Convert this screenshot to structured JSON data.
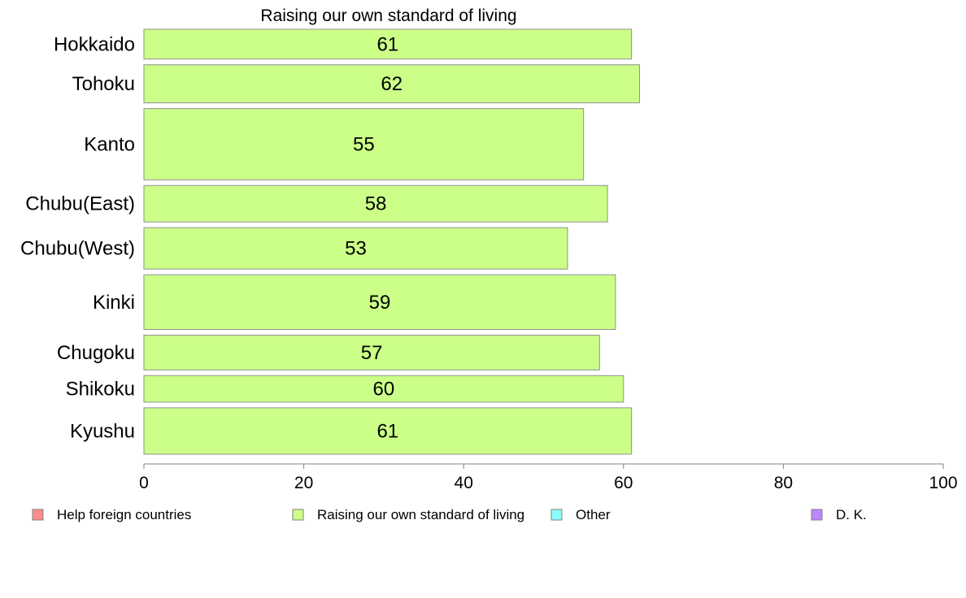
{
  "chart_data": {
    "type": "bar",
    "orientation": "horizontal",
    "title": "Raising our own standard of living",
    "xlabel": "",
    "ylabel": "",
    "xlim": [
      0,
      100
    ],
    "x_ticks": [
      0,
      20,
      40,
      60,
      80,
      100
    ],
    "grid": false,
    "categories": [
      "Hokkaido",
      "Tohoku",
      "Kanto",
      "Chubu(East)",
      "Chubu(West)",
      "Kinki",
      "Chugoku",
      "Shikoku",
      "Kyushu"
    ],
    "relative_bar_thickness": [
      36,
      46,
      86,
      44,
      50,
      66,
      42,
      32,
      56
    ],
    "series": [
      {
        "name": "Raising our own standard of living",
        "color": "#ccff88",
        "values": [
          61,
          62,
          55,
          58,
          53,
          59,
          57,
          60,
          61
        ]
      }
    ],
    "legend": {
      "placement": "bottom",
      "items": [
        {
          "label": "Help foreign countries",
          "color": "#ff8c8c"
        },
        {
          "label": "Raising our own standard of living",
          "color": "#ccff88"
        },
        {
          "label": "Other",
          "color": "#88ffff"
        },
        {
          "label": "D. K.",
          "color": "#bb88ff"
        }
      ]
    }
  }
}
